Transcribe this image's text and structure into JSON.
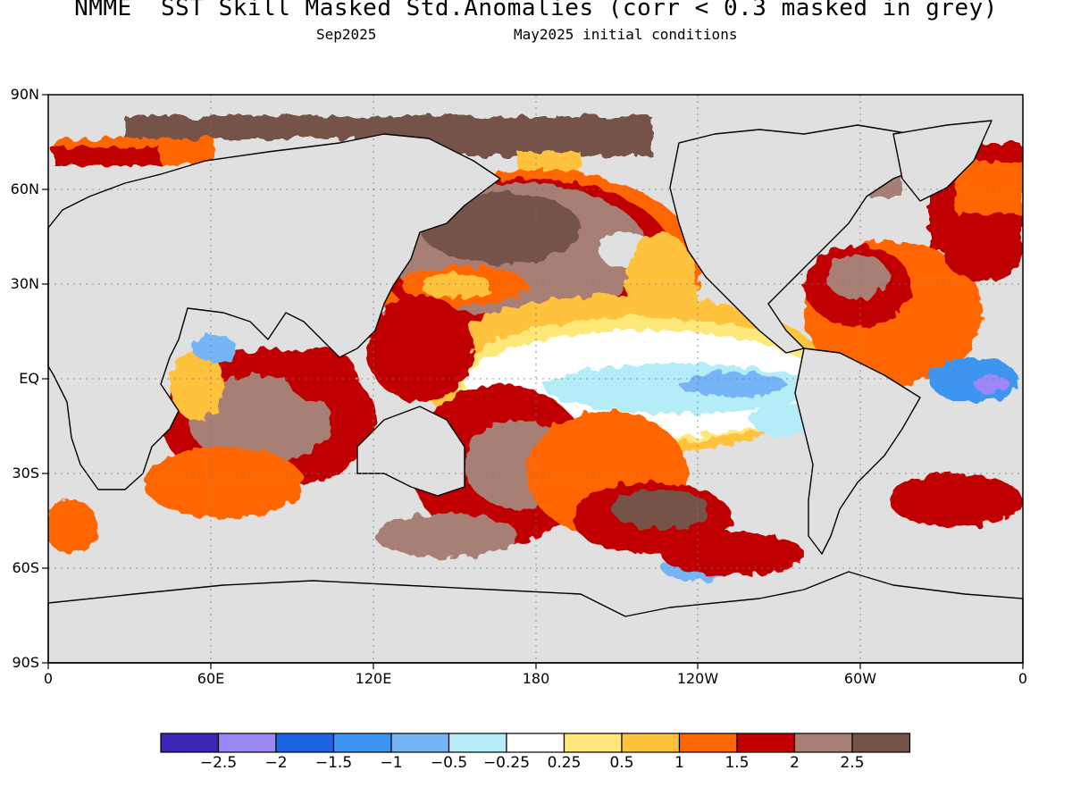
{
  "title": "NMME  SST Skill Masked Std.Anomalies (corr < 0.3 masked in grey)",
  "subtitle_left": "Sep2025",
  "subtitle_right": "May2025 initial conditions",
  "lat_labels": [
    "90N",
    "60N",
    "30N",
    "EQ",
    "30S",
    "60S",
    "90S"
  ],
  "lon_labels": [
    "0",
    "60E",
    "120E",
    "180",
    "120W",
    "60W",
    "0"
  ],
  "colorbar": {
    "colors": [
      "#3a26b4",
      "#9b87f5",
      "#1d62e3",
      "#3e95f0",
      "#75b5f5",
      "#b4ecf8",
      "#ffffff",
      "#ffe87a",
      "#ffc23c",
      "#ff6600",
      "#c00000",
      "#a87f74",
      "#76524a"
    ],
    "labels": [
      "-2.5",
      "-2",
      "-1.5",
      "-1",
      "-0.5",
      "-0.25",
      "0.25",
      "0.5",
      "1",
      "1.5",
      "2",
      "2.5"
    ]
  },
  "mask_color": "#e0e0e0"
}
